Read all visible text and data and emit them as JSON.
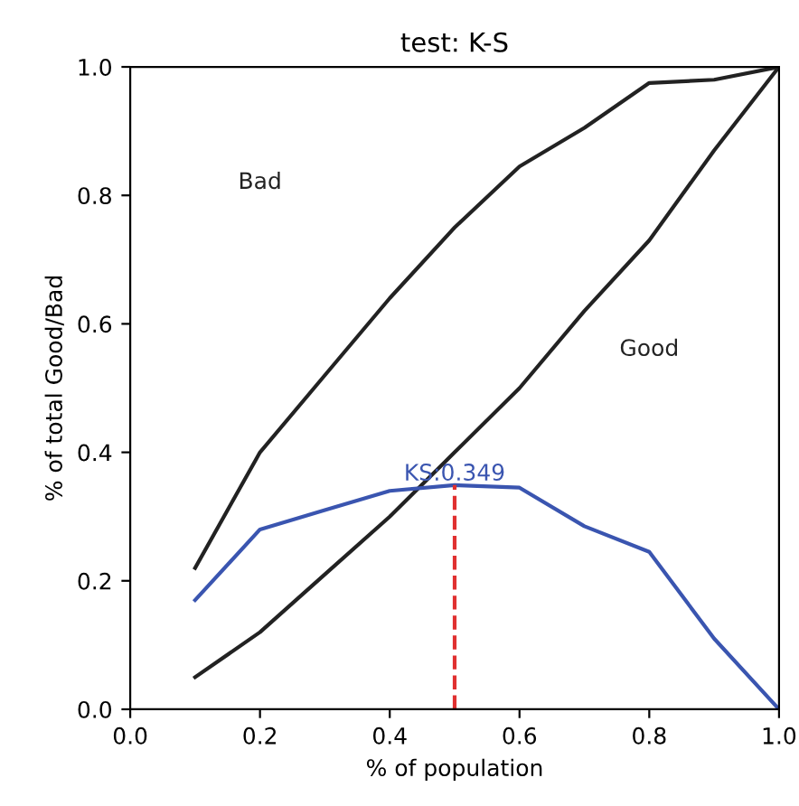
{
  "chart_data": {
    "type": "line",
    "title": "test: K-S",
    "xlabel": "% of population",
    "ylabel": "% of total Good/Bad",
    "xlim": [
      0.0,
      1.0
    ],
    "ylim": [
      0.0,
      1.0
    ],
    "xticks": [
      {
        "value": 0.0,
        "label": "0.0"
      },
      0.2,
      0.4,
      0.6,
      0.8,
      {
        "value": 1.0,
        "label": "1.0"
      }
    ],
    "yticks": [
      {
        "value": 0.0,
        "label": "0.0"
      },
      0.2,
      0.4,
      0.6,
      0.8,
      {
        "value": 1.0,
        "label": "1.0"
      }
    ],
    "grid": false,
    "marker": "none",
    "series": [
      {
        "color": "#222222",
        "x": [
          0.1,
          0.2,
          0.3,
          0.4,
          0.5,
          0.6,
          0.7,
          0.8,
          0.9,
          1.0
        ],
        "values": [
          0.22,
          0.4,
          0.52,
          0.64,
          0.75,
          0.845,
          0.905,
          0.975,
          0.98,
          1.0
        ]
      },
      {
        "color": "#222222",
        "x": [
          0.1,
          0.2,
          0.3,
          0.4,
          0.5,
          0.6,
          0.7,
          0.8,
          0.9,
          1.0
        ],
        "values": [
          0.05,
          0.12,
          0.21,
          0.3,
          0.4,
          0.5,
          0.62,
          0.73,
          0.87,
          1.0
        ]
      },
      {
        "color": "#3a55b0",
        "x": [
          0.1,
          0.2,
          0.3,
          0.4,
          0.5,
          0.6,
          0.7,
          0.8,
          0.9,
          1.0
        ],
        "values": [
          0.17,
          0.28,
          0.31,
          0.34,
          0.349,
          0.345,
          0.285,
          0.245,
          0.11,
          0.0
        ]
      },
      {
        "color": "#e03030",
        "line_style": "dashed",
        "x": [
          0.5,
          0.5
        ],
        "values": [
          0.0,
          0.349
        ]
      }
    ],
    "annotations": [
      "Bad",
      "Good",
      {
        "text": "KS:0.349",
        "x": 0.5,
        "y": 0.349
      }
    ]
  }
}
